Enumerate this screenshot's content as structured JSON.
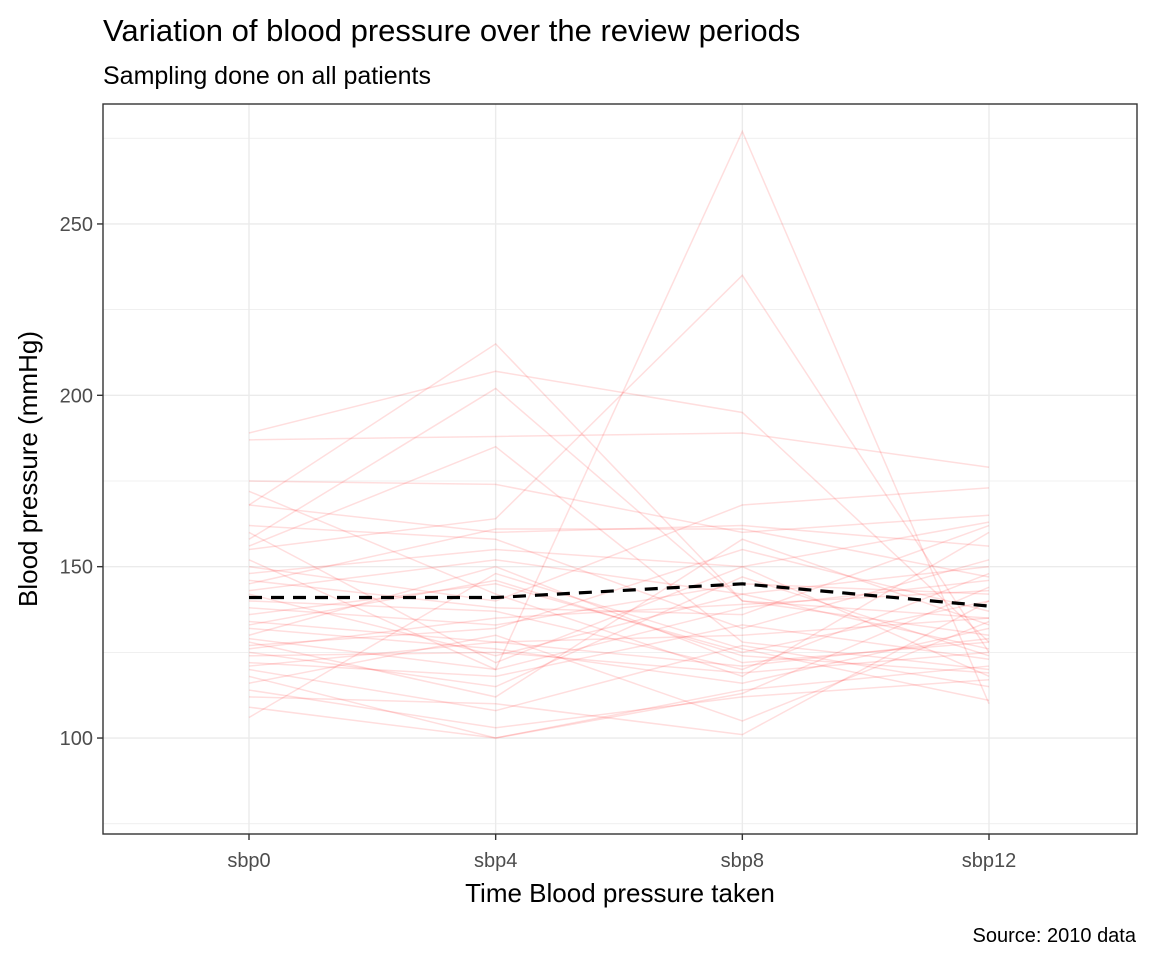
{
  "chart_data": {
    "type": "line",
    "title": "Variation of blood pressure over the review periods",
    "subtitle": "Sampling done on all patients",
    "xlabel": "Time Blood pressure taken",
    "ylabel": "Blood pressure (mmHg)",
    "caption": "Source: 2010 data",
    "categories": [
      "sbp0",
      "sbp4",
      "sbp8",
      "sbp12"
    ],
    "ylim": [
      72,
      285
    ],
    "yticks": [
      100,
      150,
      200,
      250
    ],
    "grid": true,
    "series_color": "#ff0000",
    "mean_line_color": "#000000",
    "mean": {
      "name": "mean",
      "values": [
        141,
        141,
        145,
        138.5
      ]
    },
    "series": [
      {
        "values": [
          189,
          207,
          195,
          128
        ]
      },
      {
        "values": [
          187,
          188,
          189,
          179
        ]
      },
      {
        "values": [
          175,
          174,
          160,
          165
        ]
      },
      {
        "values": [
          168,
          160,
          162,
          156
        ]
      },
      {
        "values": [
          168,
          215,
          140,
          135
        ]
      },
      {
        "values": [
          158,
          202,
          140,
          130
        ]
      },
      {
        "values": [
          156,
          185,
          128,
          120
        ]
      },
      {
        "values": [
          155,
          164,
          235,
          125
        ]
      },
      {
        "values": [
          152,
          120,
          277,
          110
        ]
      },
      {
        "values": [
          150,
          140,
          168,
          173
        ]
      },
      {
        "values": [
          148,
          155,
          150,
          163
        ]
      },
      {
        "values": [
          146,
          138,
          136,
          162
        ]
      },
      {
        "values": [
          145,
          161,
          161,
          147
        ]
      },
      {
        "values": [
          143,
          152,
          142,
          126
        ]
      },
      {
        "values": [
          140,
          137,
          120,
          148
        ]
      },
      {
        "values": [
          138,
          133,
          145,
          142
        ]
      },
      {
        "values": [
          136,
          145,
          125,
          140
        ]
      },
      {
        "values": [
          134,
          128,
          130,
          135
        ]
      },
      {
        "values": [
          132,
          126,
          116,
          132
        ]
      },
      {
        "values": [
          130,
          150,
          122,
          128
        ]
      },
      {
        "values": [
          129,
          120,
          138,
          146
        ]
      },
      {
        "values": [
          127,
          132,
          155,
          137
        ]
      },
      {
        "values": [
          125,
          115,
          147,
          124
        ]
      },
      {
        "values": [
          124,
          125,
          119,
          125
        ]
      },
      {
        "values": [
          122,
          118,
          133,
          123
        ]
      },
      {
        "values": [
          120,
          108,
          127,
          115
        ]
      },
      {
        "values": [
          118,
          100,
          114,
          121
        ]
      },
      {
        "values": [
          116,
          130,
          105,
          134
        ]
      },
      {
        "values": [
          114,
          103,
          112,
          117
        ]
      },
      {
        "values": [
          112,
          110,
          101,
          140
        ]
      },
      {
        "values": [
          106,
          148,
          126,
          111
        ]
      },
      {
        "values": [
          109,
          100,
          113,
          144
        ]
      },
      {
        "values": [
          160,
          122,
          150,
          118
        ]
      },
      {
        "values": [
          172,
          142,
          118,
          160
        ]
      },
      {
        "values": [
          162,
          158,
          132,
          152
        ]
      },
      {
        "values": [
          142,
          124,
          142,
          150
        ]
      },
      {
        "values": [
          133,
          146,
          124,
          119
        ]
      },
      {
        "values": [
          128,
          112,
          158,
          133
        ]
      },
      {
        "values": [
          126,
          135,
          139,
          143
        ]
      },
      {
        "values": [
          121,
          128,
          121,
          129
        ]
      }
    ]
  }
}
